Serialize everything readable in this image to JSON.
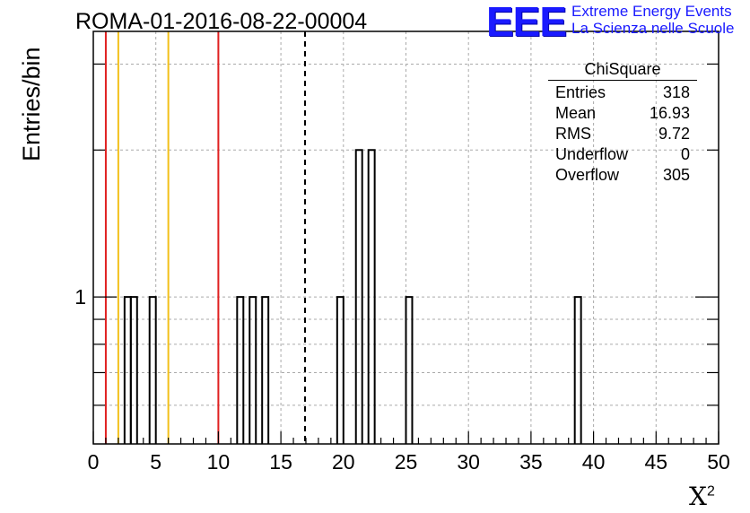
{
  "header": {
    "title": "ROMA-01-2016-08-22-00004",
    "logo": "EEE",
    "logo_line1": "Extreme Energy Events",
    "logo_line2": "La Scienza nelle Scuole"
  },
  "stats": {
    "name": "ChiSquare",
    "rows": [
      {
        "label": "Entries",
        "value": "318"
      },
      {
        "label": "Mean",
        "value": "16.93"
      },
      {
        "label": "RMS",
        "value": "9.72"
      },
      {
        "label": "Underflow",
        "value": "0"
      },
      {
        "label": "Overflow",
        "value": "305"
      }
    ]
  },
  "colors": {
    "red": "#e02020",
    "yellow": "#f2c01a",
    "grid": "#aaaaaa"
  },
  "chart_data": {
    "type": "bar",
    "title": "ROMA-01-2016-08-22-00004",
    "xlabel": "X",
    "xlabel_sup": "2",
    "ylabel": "Entries/bin",
    "xlim": [
      0,
      50
    ],
    "ylim": [
      0.5,
      3.5
    ],
    "y_scale": "log",
    "bin_width": 0.5,
    "x_ticks": [
      "0",
      "5",
      "10",
      "15",
      "20",
      "25",
      "30",
      "35",
      "40",
      "45",
      "50"
    ],
    "y_tick_labels": [
      "1"
    ],
    "bins": [
      {
        "x": 2.5,
        "count": 1
      },
      {
        "x": 3.0,
        "count": 1
      },
      {
        "x": 4.5,
        "count": 1
      },
      {
        "x": 11.5,
        "count": 1
      },
      {
        "x": 12.5,
        "count": 1
      },
      {
        "x": 13.5,
        "count": 1
      },
      {
        "x": 19.5,
        "count": 1
      },
      {
        "x": 21.0,
        "count": 2
      },
      {
        "x": 22.0,
        "count": 2
      },
      {
        "x": 25.0,
        "count": 1
      },
      {
        "x": 38.5,
        "count": 1
      }
    ],
    "vlines": [
      {
        "x": 1.0,
        "color": "red"
      },
      {
        "x": 2.0,
        "color": "yellow"
      },
      {
        "x": 6.0,
        "color": "yellow"
      },
      {
        "x": 10.0,
        "color": "red"
      },
      {
        "x": 16.93,
        "color": "black",
        "style": "dashed"
      }
    ],
    "grid": true,
    "legend": "top-right"
  }
}
